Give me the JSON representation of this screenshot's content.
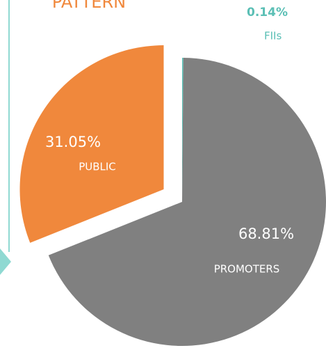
{
  "chart_data": {
    "type": "pie",
    "title": "PATTERN",
    "categories": [
      "FIIs",
      "PROMOTERS",
      "PUBLIC"
    ],
    "values": [
      0.14,
      68.81,
      31.05
    ],
    "value_labels": [
      "0.14%",
      "68.81%",
      "31.05%"
    ],
    "colors": [
      "#5bbfb5",
      "#808080",
      "#f0883c"
    ]
  }
}
